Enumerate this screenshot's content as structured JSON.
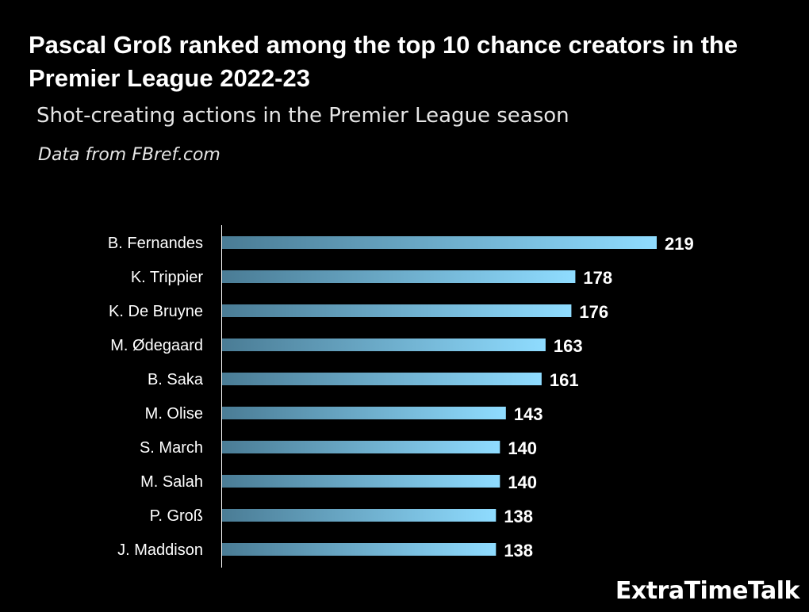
{
  "header": {
    "title": "Pascal Groß ranked among the top 10 chance creators in the Premier League 2022-23",
    "subtitle": "Shot-creating actions in the Premier League season",
    "source": "Data from FBref.com"
  },
  "brand": "ExtraTimeTalk",
  "colors": {
    "background": "#000000",
    "bar_start": "#4a7c95",
    "bar_end": "#8fdcff",
    "axis": "#ffffff",
    "text": "#ffffff"
  },
  "chart_data": {
    "type": "bar",
    "orientation": "horizontal",
    "title": "Pascal Groß ranked among the top 10 chance creators in the Premier League 2022-23",
    "subtitle": "Shot-creating actions in the Premier League season",
    "xlabel": "",
    "ylabel": "",
    "grid": false,
    "xlim": [
      0,
      219
    ],
    "categories": [
      "B. Fernandes",
      "K. Trippier",
      "K. De Bruyne",
      "M. Ødegaard",
      "B. Saka",
      "M. Olise",
      "S. March",
      "M. Salah",
      "P. Groß",
      "J. Maddison"
    ],
    "values": [
      219,
      178,
      176,
      163,
      161,
      143,
      140,
      140,
      138,
      138
    ],
    "value_labels": [
      "219",
      "178",
      "176",
      "163",
      "161",
      "143",
      "140",
      "140",
      "138",
      "138"
    ]
  }
}
